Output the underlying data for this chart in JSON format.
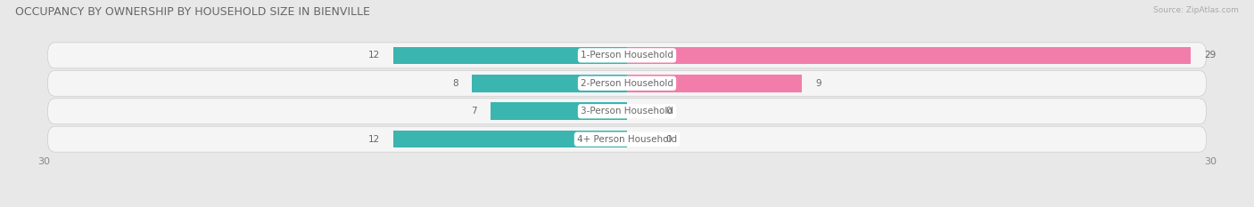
{
  "title": "OCCUPANCY BY OWNERSHIP BY HOUSEHOLD SIZE IN BIENVILLE",
  "source": "Source: ZipAtlas.com",
  "categories": [
    "1-Person Household",
    "2-Person Household",
    "3-Person Household",
    "4+ Person Household"
  ],
  "owner_values": [
    12,
    8,
    7,
    12
  ],
  "renter_values": [
    29,
    9,
    0,
    0
  ],
  "owner_color": "#3ab5b0",
  "renter_color": "#f27daa",
  "axis_limit": 30,
  "bg_color": "#e8e8e8",
  "row_bg_color": "#f5f5f5",
  "label_fontsize": 7.5,
  "title_fontsize": 9,
  "legend_fontsize": 8,
  "axis_tick_fontsize": 8,
  "value_fontsize": 7.5
}
